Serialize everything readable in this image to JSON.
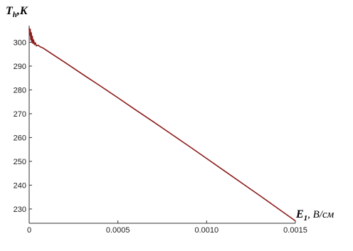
{
  "chart_data": {
    "type": "line",
    "title": "",
    "xlabel": {
      "symbol": "E",
      "subscript": "1",
      "unit": ", В/см"
    },
    "ylabel": {
      "symbol": "T",
      "subscript": "h",
      "unit": ",K"
    },
    "xlim": [
      0,
      0.0015
    ],
    "ylim": [
      224,
      307
    ],
    "x_ticks": [
      {
        "value": 0,
        "label": "0"
      },
      {
        "value": 0.0005,
        "label": "0.0005"
      },
      {
        "value": 0.001,
        "label": "0.0010"
      },
      {
        "value": 0.0015,
        "label": "0.0015"
      }
    ],
    "y_ticks": [
      {
        "value": 230,
        "label": "230"
      },
      {
        "value": 240,
        "label": "240"
      },
      {
        "value": 250,
        "label": "250"
      },
      {
        "value": 260,
        "label": "260"
      },
      {
        "value": 270,
        "label": "270"
      },
      {
        "value": 280,
        "label": "280"
      },
      {
        "value": 290,
        "label": "290"
      },
      {
        "value": 300,
        "label": "300"
      }
    ],
    "grid": false,
    "series": [
      {
        "color": "#8b1a1a",
        "x": [
          0,
          3e-06,
          6e-06,
          9e-06,
          1.2e-05,
          1.5e-05,
          1.8e-05,
          2.1e-05,
          2.5e-05,
          3e-05,
          3.5e-05,
          4e-05,
          5e-05,
          6e-05,
          8e-05,
          0.0001,
          0.0002,
          0.0003,
          0.0004,
          0.0005,
          0.0006,
          0.0007,
          0.0008,
          0.0009,
          0.001,
          0.0011,
          0.0012,
          0.0013,
          0.0014,
          0.0015
        ],
        "y": [
          306,
          303,
          305.5,
          301,
          304,
          300,
          302.5,
          299.5,
          301,
          299,
          299.8,
          298.5,
          298.8,
          298.2,
          297.5,
          296.5,
          291.6,
          286.6,
          281.7,
          276.7,
          271.6,
          266.6,
          261.5,
          256.4,
          251.2,
          246.0,
          240.8,
          235.6,
          230.3,
          225
        ]
      }
    ]
  }
}
